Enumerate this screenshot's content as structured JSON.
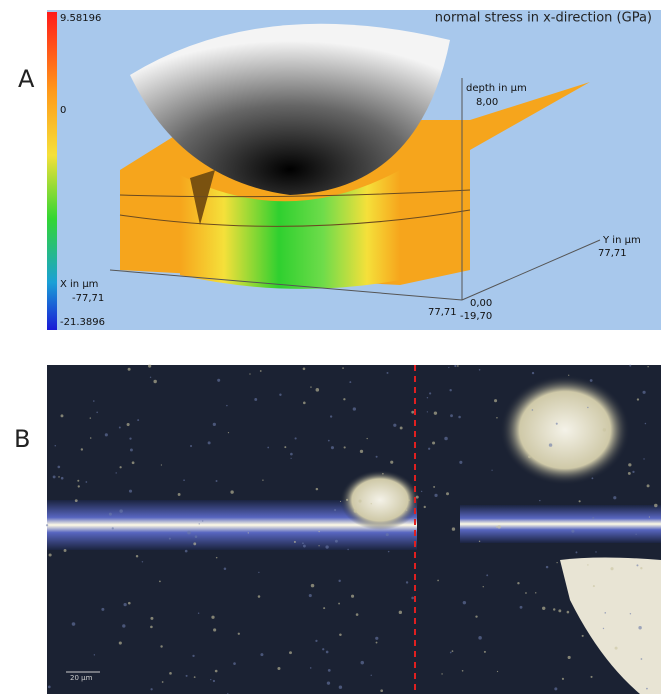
{
  "panel_a": {
    "label": "A",
    "title": "normal stress in x-direction (GPa)",
    "colorbar": {
      "max": "9.58196",
      "mid": "0",
      "min": "-21.3896"
    },
    "axes": {
      "depth_label": "depth in µm",
      "depth_max": "8,00",
      "x_label": "X in µm",
      "x_min": "-77,71",
      "x_max": "77,71",
      "y_label": "Y in µm",
      "y_max": "77,71",
      "y_zero": "0,00",
      "depth_min": "-19,70"
    }
  },
  "panel_b": {
    "label": "B",
    "scale_bar": "20 µm"
  }
}
